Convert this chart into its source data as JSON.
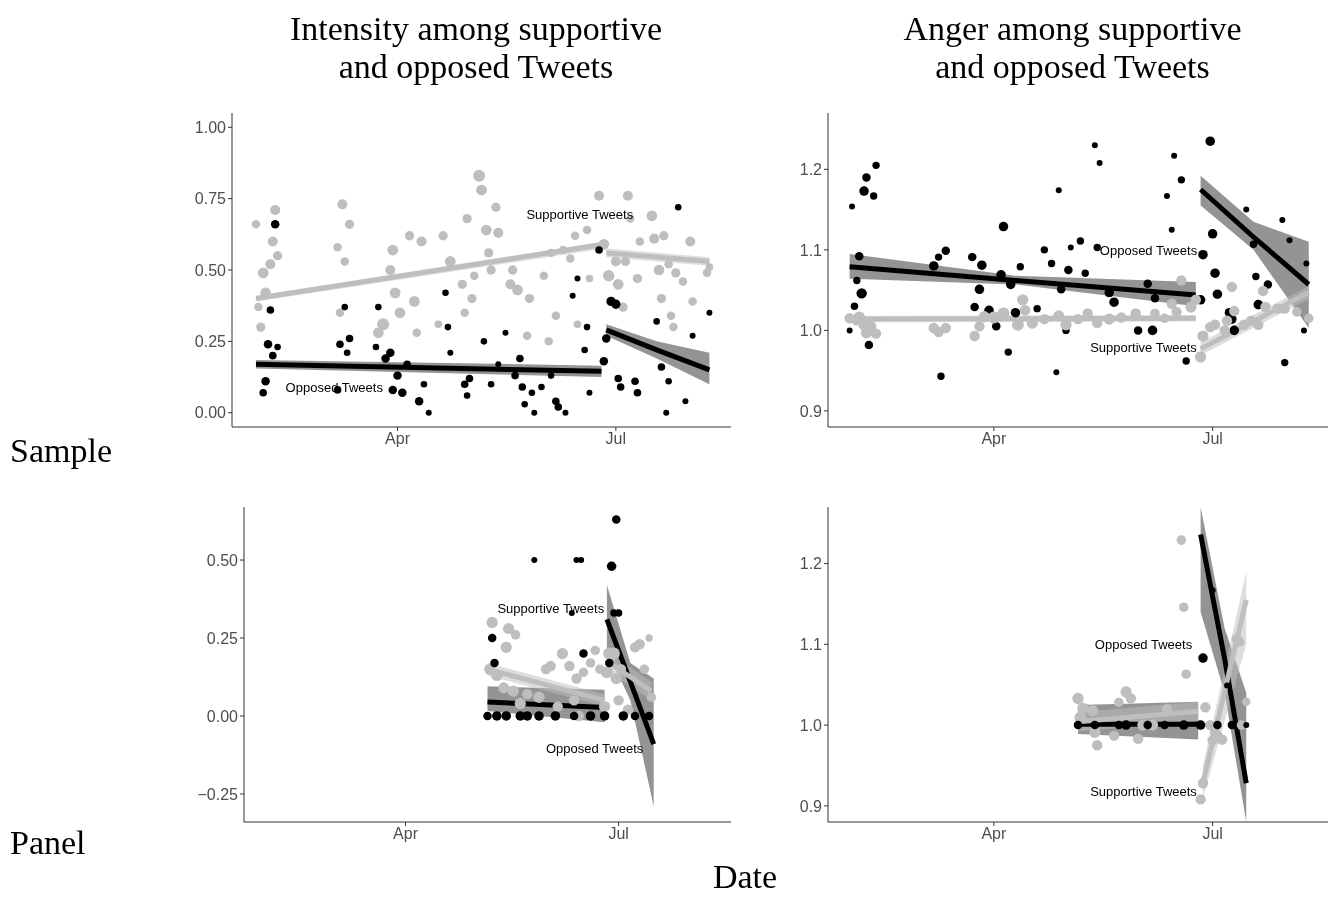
{
  "chart_data": [
    {
      "type": "bubble",
      "title": "Intensity among supportive\nand opposed Tweets",
      "ylabel": "Sample",
      "xlim": [
        "--01-22",
        "--08-18"
      ],
      "xticks": [
        {
          "value": "--04-01",
          "label": "Apr"
        },
        {
          "value": "--07-01",
          "label": "Jul"
        }
      ],
      "ylim": [
        -0.05,
        1.05
      ],
      "yticks": [
        {
          "value": 0,
          "label": "0.00"
        },
        {
          "value": 0.25,
          "label": "0.25"
        },
        {
          "value": 0.5,
          "label": "0.50"
        },
        {
          "value": 0.75,
          "label": "0.75"
        },
        {
          "value": 1,
          "label": "1.00"
        }
      ],
      "annotations": [
        "Supportive Tweets",
        "Opposed Tweets"
      ],
      "series": [
        {
          "type": "bubble",
          "color": "#bebebe",
          "x": [
            "--02-01",
            "--02-09",
            "--02-08",
            "--02-07",
            "--02-04",
            "--02-05",
            "--02-03",
            "--02-02",
            "--02-10",
            "--03-09",
            "--03-12",
            "--03-07",
            "--03-08",
            "--03-10",
            "--03-24",
            "--03-26",
            "--03-30",
            "--03-29",
            "--03-31",
            "--04-02",
            "--04-06",
            "--04-08",
            "--04-11",
            "--04-20",
            "--04-23",
            "--04-28",
            "--04-30",
            "--05-05",
            "--05-06",
            "--05-08",
            "--05-12",
            "--05-13",
            "--05-09",
            "--05-10",
            "--05-03",
            "--05-02",
            "--04-29",
            "--04-09",
            "--04-18",
            "--05-19",
            "--05-18",
            "--05-21",
            "--05-26",
            "--06-01",
            "--05-25",
            "--06-03",
            "--06-04",
            "--06-09",
            "--06-12",
            "--06-14",
            "--06-19",
            "--06-15",
            "--06-06",
            "--06-20",
            "--06-24",
            "--06-26",
            "--06-28",
            "--07-01",
            "--07-02",
            "--07-04",
            "--07-06",
            "--07-05",
            "--07-07",
            "--07-10",
            "--07-11",
            "--07-16",
            "--07-17",
            "--07-19",
            "--07-20",
            "--07-21",
            "--07-23",
            "--07-24",
            "--07-25",
            "--07-26",
            "--07-29",
            "--08-01",
            "--08-02",
            "--08-08",
            "--08-09"
          ],
          "values": [
            0.66,
            0.71,
            0.6,
            0.52,
            0.49,
            0.42,
            0.3,
            0.37,
            0.55,
            0.73,
            0.66,
            0.58,
            0.35,
            0.53,
            0.28,
            0.31,
            0.57,
            0.5,
            0.42,
            0.35,
            0.62,
            0.39,
            0.6,
            0.62,
            0.53,
            0.45,
            0.68,
            0.83,
            0.78,
            0.64,
            0.72,
            0.63,
            0.56,
            0.5,
            0.48,
            0.4,
            0.35,
            0.28,
            0.31,
            0.5,
            0.45,
            0.43,
            0.4,
            0.48,
            0.27,
            0.25,
            0.56,
            0.57,
            0.54,
            0.62,
            0.64,
            0.31,
            0.34,
            0.47,
            0.76,
            0.59,
            0.48,
            0.53,
            0.45,
            0.37,
            0.76,
            0.53,
            0.68,
            0.47,
            0.6,
            0.69,
            0.61,
            0.5,
            0.4,
            0.62,
            0.52,
            0.34,
            0.3,
            0.49,
            0.46,
            0.6,
            0.39,
            0.49,
            0.51
          ],
          "sizes": [
            0.5,
            0.7,
            0.7,
            0.7,
            0.8,
            0.8,
            0.6,
            0.5,
            0.6,
            0.7,
            0.6,
            0.5,
            0.5,
            0.5,
            0.8,
            1,
            0.8,
            0.7,
            0.8,
            0.8,
            0.6,
            0.8,
            0.7,
            0.6,
            0.8,
            0.6,
            0.6,
            1,
            0.8,
            0.8,
            0.6,
            0.7,
            0.6,
            0.6,
            0.5,
            0.6,
            0.5,
            0.5,
            0.4,
            0.6,
            0.7,
            0.8,
            0.6,
            0.5,
            0.5,
            0.5,
            0.5,
            0.5,
            0.5,
            0.5,
            0.5,
            0.4,
            0.5,
            0.4,
            0.7,
            0.8,
            0.9,
            0.7,
            0.8,
            0.6,
            0.7,
            0.6,
            0.5,
            0.6,
            0.5,
            0.8,
            0.7,
            0.8,
            0.6,
            0.6,
            0.5,
            0.5,
            0.5,
            0.6,
            0.5,
            0.7,
            0.5,
            0.5,
            0.4
          ]
        },
        {
          "type": "bubble",
          "color": "#000000",
          "x": [
            "--02-09",
            "--02-07",
            "--02-06",
            "--02-05",
            "--02-04",
            "--02-08",
            "--02-10",
            "--03-10",
            "--03-08",
            "--03-12",
            "--03-11",
            "--03-07",
            "--03-24",
            "--03-23",
            "--03-29",
            "--03-30",
            "--03-27",
            "--04-01",
            "--04-03",
            "--04-05",
            "--04-10",
            "--04-12",
            "--04-14",
            "--04-21",
            "--04-22",
            "--04-23",
            "--04-29",
            "--05-01",
            "--04-30",
            "--05-07",
            "--05-10",
            "--05-13",
            "--05-16",
            "--05-22",
            "--05-20",
            "--05-23",
            "--05-24",
            "--05-27",
            "--05-28",
            "--05-31",
            "--06-04",
            "--06-06",
            "--06-07",
            "--06-10",
            "--06-13",
            "--06-15",
            "--06-18",
            "--06-19",
            "--06-20",
            "--06-24",
            "--06-26",
            "--06-27",
            "--06-29",
            "--07-01",
            "--07-02",
            "--07-03",
            "--07-09",
            "--07-10",
            "--07-18",
            "--07-20",
            "--07-23",
            "--07-27",
            "--07-30",
            "--08-02",
            "--08-09",
            "--07-22"
          ],
          "values": [
            0.66,
            0.36,
            0.24,
            0.11,
            0.07,
            0.2,
            0.23,
            0.37,
            0.24,
            0.26,
            0.21,
            0.08,
            0.37,
            0.23,
            0.21,
            0.08,
            0.19,
            0.13,
            0.07,
            0.17,
            0.04,
            0.1,
            0,
            0.42,
            0.3,
            0.21,
            0.1,
            0.12,
            0.06,
            0.25,
            0.1,
            0.17,
            0.28,
            0.19,
            0.13,
            0.09,
            0.03,
            0.07,
            0,
            0.09,
            0.13,
            0.04,
            0.02,
            0,
            0.41,
            0.47,
            0.22,
            0.3,
            0.07,
            0.57,
            0.18,
            0.26,
            0.39,
            0.38,
            0.12,
            0.09,
            0.11,
            0.07,
            0.32,
            0.16,
            0.11,
            0.72,
            0.04,
            0.27,
            0.35,
            0
          ],
          "sizes": [
            0.5,
            0.4,
            0.5,
            0.5,
            0.4,
            0.4,
            0.3,
            0.3,
            0.4,
            0.4,
            0.3,
            0.4,
            0.3,
            0.3,
            0.5,
            0.5,
            0.5,
            0.5,
            0.5,
            0.4,
            0.5,
            0.3,
            0.25,
            0.3,
            0.3,
            0.25,
            0.4,
            0.4,
            0.3,
            0.3,
            0.3,
            0.25,
            0.25,
            0.4,
            0.4,
            0.4,
            0.3,
            0.3,
            0.25,
            0.3,
            0.3,
            0.4,
            0.4,
            0.25,
            0.25,
            0.25,
            0.3,
            0.3,
            0.25,
            0.4,
            0.5,
            0.5,
            0.6,
            0.6,
            0.4,
            0.4,
            0.4,
            0.4,
            0.3,
            0.4,
            0.3,
            0.3,
            0.25,
            0.25,
            0.25,
            0.25
          ]
        },
        {
          "type": "line",
          "color": "#000000",
          "x": [
            "--02-01",
            "--06-25"
          ],
          "values": [
            0.17,
            0.145
          ],
          "lower": [
            0.155,
            0.125
          ],
          "upper": [
            0.185,
            0.165
          ]
        },
        {
          "type": "line",
          "color": "#000000",
          "x": [
            "--06-27",
            "--07-18",
            "--08-09"
          ],
          "values": [
            0.29,
            0.22,
            0.15
          ],
          "lower": [
            0.27,
            0.19,
            0.1
          ],
          "upper": [
            0.31,
            0.25,
            0.21
          ]
        },
        {
          "type": "line",
          "color": "#bebebe",
          "x": [
            "--02-01",
            "--06-26"
          ],
          "values": [
            0.4,
            0.59
          ],
          "lower": [
            0.39,
            0.575
          ],
          "upper": [
            0.41,
            0.6
          ]
        },
        {
          "type": "line",
          "color": "#bebebe",
          "x": [
            "--06-27",
            "--08-09"
          ],
          "values": [
            0.56,
            0.53
          ],
          "lower": [
            0.545,
            0.515
          ],
          "upper": [
            0.575,
            0.545
          ]
        }
      ]
    },
    {
      "type": "bubble",
      "title": "Anger among supportive\nand opposed Tweets",
      "xlim": [
        "--01-22",
        "--08-18"
      ],
      "xticks": [
        {
          "value": "--04-01",
          "label": "Apr"
        },
        {
          "value": "--07-01",
          "label": "Jul"
        }
      ],
      "ylim": [
        0.88,
        1.27
      ],
      "yticks": [
        0.9,
        {
          "value": 1,
          "label": "1.0"
        },
        1.1,
        1.2
      ],
      "annotations": [
        "Opposed Tweets",
        "Supportive Tweets"
      ],
      "series": [
        {
          "type": "bubble",
          "color": "#000000",
          "x": [
            "--02-01",
            "--02-06",
            "--02-07",
            "--02-10",
            "--02-11",
            "--02-04",
            "--02-05",
            "--02-03",
            "--02-02",
            "--02-08",
            "--01-31",
            "--03-07",
            "--03-09",
            "--03-12",
            "--03-10",
            "--03-23",
            "--03-27",
            "--03-26",
            "--03-24",
            "--03-30",
            "--04-05",
            "--04-04",
            "--04-02",
            "--04-08",
            "--04-10",
            "--04-07",
            "--04-12",
            "--04-19",
            "--04-28",
            "--04-22",
            "--04-25",
            "--04-29",
            "--05-02",
            "--04-27",
            "--05-01",
            "--05-03",
            "--05-07",
            "--05-09",
            "--05-13",
            "--05-15",
            "--05-14",
            "--05-19",
            "--05-21",
            "--05-31",
            "--06-04",
            "--06-06",
            "--06-07",
            "--06-12",
            "--06-15",
            "--06-18",
            "--06-14",
            "--06-20",
            "--06-26",
            "--06-27",
            "--06-30",
            "--07-01",
            "--07-02",
            "--07-03",
            "--07-08",
            "--07-09",
            "--07-10",
            "--07-15",
            "--07-18",
            "--07-19",
            "--07-20",
            "--07-24",
            "--07-30",
            "--07-31",
            "--08-02",
            "--08-09",
            "--08-08"
          ],
          "values": [
            1.154,
            1.173,
            1.19,
            1.167,
            1.205,
            1.092,
            1.046,
            1.062,
            1.03,
            0.982,
            1.0,
            1.08,
            1.091,
            1.099,
            0.943,
            1.091,
            1.081,
            1.051,
            1.029,
            1.025,
            1.129,
            1.069,
            1.005,
            1.057,
            1.022,
            0.973,
            1.079,
            1.027,
            1.174,
            1.1,
            1.083,
            1.051,
            1.075,
            0.948,
            1.0,
            1.103,
            1.111,
            1.071,
            1.23,
            1.208,
            1.103,
            1.047,
            1.035,
            1.0,
            1.058,
            1.0,
            1.04,
            1.167,
            1.217,
            1.187,
            1.125,
            0.962,
            1.038,
            1.094,
            1.235,
            1.12,
            1.071,
            1.045,
            1.022,
            1.014,
            1.0,
            1.15,
            1.107,
            1.067,
            1.032,
            1.057,
            1.137,
            0.96,
            1.112,
            1.083,
            1.0
          ],
          "sizes": [
            0.25,
            0.63,
            0.5,
            0.38,
            0.38,
            0.5,
            0.75,
            0.38,
            0.38,
            0.5,
            0.25,
            0.63,
            0.38,
            0.5,
            0.38,
            0.5,
            0.63,
            0.63,
            0.5,
            0.63,
            0.63,
            0.63,
            0.5,
            0.63,
            0.63,
            0.38,
            0.38,
            0.38,
            0.25,
            0.38,
            0.38,
            0.5,
            0.5,
            0.25,
            0.38,
            0.25,
            0.38,
            0.38,
            0.25,
            0.25,
            0.38,
            0.63,
            0.63,
            0.5,
            0.5,
            0.63,
            0.5,
            0.25,
            0.25,
            0.38,
            0.25,
            0.38,
            0.63,
            0.63,
            0.63,
            0.63,
            0.63,
            0.63,
            0.63,
            0.63,
            0.63,
            0.25,
            0.38,
            0.38,
            0.63,
            0.5,
            0.25,
            0.38,
            0.25,
            0.25,
            0.25
          ]
        },
        {
          "type": "bubble",
          "color": "#bebebe",
          "x": [
            "--01-31",
            "--02-03",
            "--02-04",
            "--02-06",
            "--02-07",
            "--02-11",
            "--02-09",
            "--03-07",
            "--03-09",
            "--03-12",
            "--03-24",
            "--03-26",
            "--03-28",
            "--04-01",
            "--04-05",
            "--04-13",
            "--04-14",
            "--04-11",
            "--04-17",
            "--04-22",
            "--04-28",
            "--05-01",
            "--05-06",
            "--05-10",
            "--05-14",
            "--05-19",
            "--05-24",
            "--05-30",
            "--06-07",
            "--06-11",
            "--06-14",
            "--06-18",
            "--06-16",
            "--06-22",
            "--06-24",
            "--06-26",
            "--06-27",
            "--06-30",
            "--07-02",
            "--07-06",
            "--07-09",
            "--07-10",
            "--07-07",
            "--07-14",
            "--07-17",
            "--07-20",
            "--07-22",
            "--07-23",
            "--07-28",
            "--07-31",
            "--08-05",
            "--08-10"
          ],
          "values": [
            1.015,
            1.013,
            1.016,
            1.007,
            0.997,
            0.996,
            1.005,
            1.003,
            0.998,
            1.003,
            0.993,
            1.005,
            1.017,
            1.016,
            1.021,
            1.038,
            1.025,
            1.007,
            1.009,
            1.014,
            1.018,
            1.007,
            1.014,
            1.021,
            1.009,
            1.014,
            1.016,
            1.021,
            1.021,
            1.015,
            1.033,
            1.062,
            1.023,
            1.029,
            1.038,
            0.967,
            0.993,
            1.004,
            1.007,
            1.0,
            1.054,
            1.024,
            1.012,
            1.007,
            1.012,
            1.007,
            1.049,
            1.029,
            1.027,
            1.027,
            1.023,
            1.015
          ],
          "sizes": [
            0.75,
            0.88,
            1,
            0.88,
            0.88,
            0.75,
            0.75,
            0.75,
            0.75,
            0.75,
            0.75,
            0.75,
            0.88,
            1,
            1,
            0.88,
            0.75,
            1,
            0.88,
            0.75,
            0.88,
            0.88,
            0.75,
            0.75,
            0.75,
            0.88,
            0.75,
            0.75,
            0.63,
            0.63,
            0.75,
            0.75,
            0.75,
            0.88,
            0.75,
            0.88,
            0.88,
            0.75,
            0.75,
            0.75,
            0.75,
            0.75,
            0.75,
            0.75,
            0.75,
            0.75,
            0.75,
            0.75,
            0.75,
            0.75,
            0.63,
            0.63
          ]
        },
        {
          "type": "line",
          "color": "#000000",
          "x": [
            "--01-31",
            "--04-10",
            "--06-24"
          ],
          "values": [
            1.079,
            1.062,
            1.044
          ],
          "lower": [
            1.064,
            1.057,
            1.03
          ],
          "upper": [
            1.095,
            1.068,
            1.06
          ]
        },
        {
          "type": "line",
          "color": "#000000",
          "x": [
            "--06-26",
            "--07-18",
            "--08-10"
          ],
          "values": [
            1.175,
            1.116,
            1.057
          ],
          "lower": [
            1.155,
            1.1,
            1.003
          ],
          "upper": [
            1.192,
            1.135,
            1.11
          ]
        },
        {
          "type": "line",
          "color": "#bebebe",
          "x": [
            "--01-31",
            "--06-24"
          ],
          "values": [
            1.014,
            1.015
          ],
          "lower": [
            1.01,
            1.011
          ],
          "upper": [
            1.018,
            1.019
          ]
        },
        {
          "type": "line",
          "color": "#bebebe",
          "x": [
            "--06-26",
            "--08-10"
          ],
          "values": [
            0.977,
            1.047
          ],
          "lower": [
            0.969,
            1.039
          ],
          "upper": [
            0.985,
            1.055
          ]
        }
      ]
    },
    {
      "type": "bubble",
      "ylabel": "Panel",
      "xlabel": "Date",
      "xlim": [
        "--01-22",
        "--08-18"
      ],
      "xticks": [
        {
          "value": "--04-01",
          "label": "Apr"
        },
        {
          "value": "--07-01",
          "label": "Jul"
        }
      ],
      "ylim": [
        -0.34,
        0.67
      ],
      "yticks": [
        {
          "value": -0.25,
          "label": "−0.25"
        },
        {
          "value": 0,
          "label": "0.00"
        },
        {
          "value": 0.25,
          "label": "0.25"
        },
        {
          "value": 0.5,
          "label": "0.50"
        }
      ],
      "annotations": [
        "Supportive Tweets",
        "Opposed Tweets"
      ],
      "series": [
        {
          "type": "bubble",
          "color": "#bebebe",
          "x": [
            "--05-08",
            "--05-15",
            "--05-18",
            "--05-14",
            "--05-07",
            "--05-10",
            "--05-13",
            "--05-17",
            "--05-20",
            "--05-23",
            "--05-28",
            "--05-31",
            "--06-02",
            "--06-05",
            "--06-07",
            "--06-10",
            "--06-12",
            "--06-13",
            "--06-16",
            "--06-19",
            "--06-21",
            "--06-23",
            "--06-25",
            "--06-27",
            "--06-29",
            "--06-26",
            "--06-30",
            "--07-01",
            "--07-02",
            "--07-05",
            "--07-08",
            "--07-10",
            "--07-12",
            "--07-14",
            "--07-15",
            "--06-14"
          ],
          "values": [
            0.3,
            0.28,
            0.26,
            0.22,
            0.15,
            0.13,
            0.09,
            0.08,
            0.04,
            0.07,
            0.06,
            0.15,
            0.16,
            0.03,
            0.2,
            0.16,
            0.05,
            0.12,
            0.14,
            0.17,
            0.21,
            0.15,
            0.03,
            0.2,
            0.2,
            0.14,
            0.12,
            0.05,
            0.15,
            0.02,
            0.22,
            0.23,
            0.15,
            0.25,
            0.06,
            0
          ],
          "sizes": [
            0.88,
            0.88,
            0.63,
            0.88,
            0.88,
            0.88,
            0.88,
            0.88,
            0.88,
            0.75,
            0.88,
            0.75,
            0.75,
            0.75,
            0.88,
            0.75,
            0.75,
            0.75,
            0.63,
            0.63,
            0.63,
            0.63,
            0.88,
            1,
            1,
            1,
            0.88,
            0.75,
            0.75,
            0.75,
            0.75,
            0.75,
            0.63,
            0.38,
            0.63,
            0.75
          ]
        },
        {
          "type": "bubble",
          "color": "#000000",
          "x": [
            "--05-06",
            "--05-10",
            "--05-14",
            "--05-20",
            "--05-23",
            "--05-28",
            "--06-04",
            "--06-12",
            "--06-19",
            "--06-25",
            "--07-03",
            "--07-08",
            "--07-14",
            "--05-26",
            "--06-13",
            "--06-15",
            "--06-28",
            "--06-30",
            "--06-29",
            "--07-01",
            "--05-08",
            "--05-09",
            "--06-16",
            "--06-27",
            "--06-11"
          ],
          "values": [
            0,
            0,
            0,
            0,
            0,
            0,
            0,
            0,
            0,
            0,
            0,
            0,
            0,
            0.5,
            0.5,
            0.5,
            0.48,
            0.63,
            0.33,
            0.33,
            0.25,
            0.17,
            0.2,
            0.17,
            0.33
          ],
          "sizes": [
            0.5,
            0.63,
            0.63,
            0.63,
            0.63,
            0.63,
            0.63,
            0.5,
            0.63,
            0.63,
            0.63,
            0.5,
            0.5,
            0.25,
            0.25,
            0.25,
            0.63,
            0.5,
            0.38,
            0.38,
            0.5,
            0.5,
            0.5,
            0.5,
            0.25
          ]
        },
        {
          "type": "line",
          "color": "#000000",
          "x": [
            "--05-06",
            "--06-25"
          ],
          "values": [
            0.045,
            0.027
          ],
          "lower": [
            0.016,
            -0.02
          ],
          "upper": [
            0.095,
            0.084
          ]
        },
        {
          "type": "line",
          "color": "#000000",
          "x": [
            "--06-26",
            "--07-06",
            "--07-16"
          ],
          "values": [
            0.31,
            0.11,
            -0.09
          ],
          "lower": [
            0.21,
            0.05,
            -0.29
          ],
          "upper": [
            0.42,
            0.17,
            0.12
          ]
        },
        {
          "type": "line",
          "color": "#bebebe",
          "x": [
            "--05-06",
            "--06-25"
          ],
          "values": [
            0.15,
            0.05
          ],
          "lower": [
            0.13,
            0.03
          ],
          "upper": [
            0.17,
            0.07
          ]
        },
        {
          "type": "line",
          "color": "#bebebe",
          "x": [
            "--06-27",
            "--07-15"
          ],
          "values": [
            0.17,
            0.08
          ],
          "lower": [
            0.14,
            0.05
          ],
          "upper": [
            0.2,
            0.11
          ]
        }
      ]
    },
    {
      "type": "bubble",
      "xlim": [
        "--01-22",
        "--08-18"
      ],
      "xticks": [
        {
          "value": "--04-01",
          "label": "Apr"
        },
        {
          "value": "--07-01",
          "label": "Jul"
        }
      ],
      "ylim": [
        0.88,
        1.27
      ],
      "yticks": [
        0.9,
        {
          "value": 1,
          "label": "1.0"
        },
        1.1,
        1.2
      ],
      "annotations": [
        "Opposed Tweets",
        "Supportive Tweets"
      ],
      "series": [
        {
          "type": "bubble",
          "color": "#bebebe",
          "x": [
            "--05-06",
            "--05-08",
            "--05-12",
            "--05-07",
            "--05-13",
            "--05-14",
            "--05-21",
            "--05-23",
            "--05-26",
            "--05-28",
            "--05-31",
            "--06-02",
            "--06-06",
            "--06-12",
            "--06-18",
            "--06-19",
            "--06-20",
            "--06-26",
            "--06-27",
            "--06-28",
            "--06-30",
            "--07-01",
            "--07-02",
            "--07-03",
            "--07-05",
            "--07-11",
            "--07-12",
            "--07-15",
            "--07-13"
          ],
          "values": [
            1.033,
            1.021,
            1.018,
            1.009,
            0.991,
            0.975,
            0.987,
            1.028,
            1.041,
            1.033,
            0.983,
            1,
            1,
            1.02,
            1.229,
            1.146,
            1.063,
            0.908,
            0.928,
            1.022,
            1,
            0.981,
            0.991,
            0.987,
            0.982,
            1.107,
            1.103,
            1.029,
            1
          ],
          "sizes": [
            0.88,
            0.88,
            0.88,
            1,
            0.88,
            0.75,
            0.75,
            0.63,
            0.88,
            0.75,
            0.75,
            0.88,
            0.88,
            0.75,
            0.63,
            0.63,
            0.63,
            0.75,
            0.75,
            0.75,
            0.75,
            0.75,
            0.75,
            0.75,
            0.75,
            0.75,
            0.75,
            0.5,
            0.63
          ]
        },
        {
          "type": "bubble",
          "color": "#000000",
          "x": [
            "--05-06",
            "--05-13",
            "--05-23",
            "--05-26",
            "--06-04",
            "--06-11",
            "--06-19",
            "--06-26",
            "--07-03",
            "--07-09",
            "--07-15",
            "--06-27",
            "--07-01",
            "--07-07"
          ],
          "values": [
            1,
            1,
            1,
            1,
            1,
            1,
            1,
            1,
            1,
            1,
            1,
            1.083,
            1.167,
            1.049
          ],
          "sizes": [
            0.5,
            0.5,
            0.5,
            0.63,
            0.5,
            0.5,
            0.63,
            0.63,
            0.5,
            0.5,
            0.25,
            0.63,
            0.25,
            0.25
          ]
        },
        {
          "type": "line",
          "color": "#000000",
          "x": [
            "--05-06",
            "--06-25"
          ],
          "values": [
            1.001,
            1.001
          ],
          "lower": [
            0.989,
            0.982
          ],
          "upper": [
            1.025,
            1.029
          ]
        },
        {
          "type": "line",
          "color": "#000000",
          "x": [
            "--06-26",
            "--07-06",
            "--07-15"
          ],
          "values": [
            1.236,
            1.082,
            0.928
          ],
          "lower": [
            1.14,
            1.04,
            0.88
          ],
          "upper": [
            1.27,
            1.12,
            1.04
          ]
        },
        {
          "type": "line",
          "color": "#bebebe",
          "x": [
            "--05-06",
            "--06-25"
          ],
          "values": [
            1.004,
            1.017
          ],
          "lower": [
            0.992,
            1.005
          ],
          "upper": [
            1.016,
            1.029
          ]
        },
        {
          "type": "line",
          "color": "#bebebe",
          "x": [
            "--06-27",
            "--07-15"
          ],
          "values": [
            0.929,
            1.155
          ],
          "lower": [
            0.91,
            1.1
          ],
          "upper": [
            0.95,
            1.19
          ]
        }
      ]
    }
  ]
}
